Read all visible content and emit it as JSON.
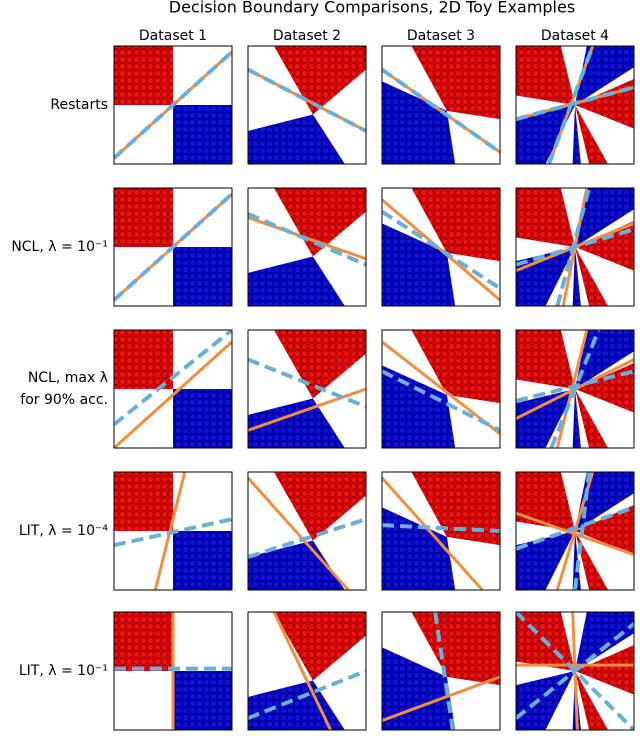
{
  "title": "Decision Boundary Comparisons, 2D Toy Examples",
  "columns": [
    "Dataset 1",
    "Dataset 2",
    "Dataset 3",
    "Dataset 4"
  ],
  "rows": [
    [
      "Restarts"
    ],
    [
      "NCL, λ = 10⁻¹"
    ],
    [
      "NCL, max λ",
      "for 90% acc."
    ],
    [
      "LIT, λ = 10⁻⁴"
    ],
    [
      "LIT, λ = 10⁻¹"
    ]
  ]
}
